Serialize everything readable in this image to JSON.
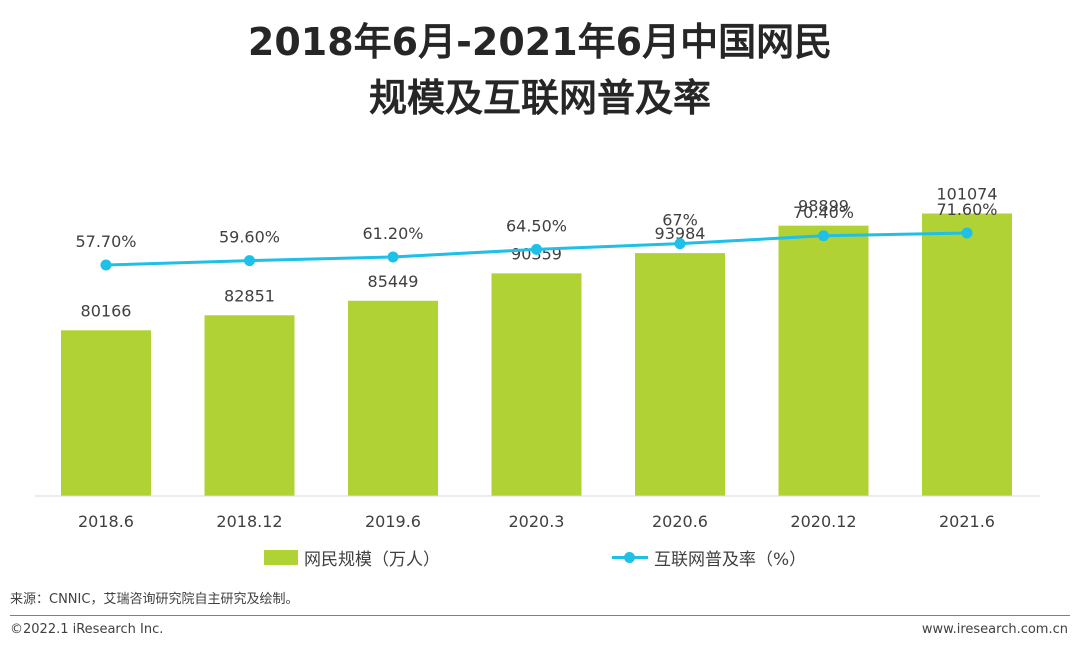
{
  "title_line1": "2018年6月-2021年6月中国网民",
  "title_line2": "规模及互联网普及率",
  "chart_data": {
    "type": "bar",
    "categories": [
      "2018.6",
      "2018.12",
      "2019.6",
      "2020.3",
      "2020.6",
      "2020.12",
      "2021.6"
    ],
    "series": [
      {
        "name": "网民规模（万人）",
        "type": "bar",
        "values": [
          80166,
          82851,
          85449,
          90359,
          93984,
          98899,
          101074
        ],
        "labels": [
          "80166",
          "82851",
          "85449",
          "90359",
          "93984",
          "98899",
          "101074"
        ],
        "color": "#b1d234"
      },
      {
        "name": "互联网普及率（%）",
        "type": "line",
        "values": [
          57.7,
          59.6,
          61.2,
          64.5,
          67,
          70.4,
          71.6
        ],
        "labels": [
          "57.70%",
          "59.60%",
          "61.20%",
          "64.50%",
          "67%",
          "70.40%",
          "71.60%"
        ],
        "color": "#1ec0e8"
      }
    ],
    "grid": false,
    "legend": "bottom"
  },
  "source": "来源：CNNIC，艾瑞咨询研究院自主研究及绘制。",
  "footer": {
    "copyright": "©2022.1 iResearch Inc.",
    "website": "www.iresearch.com.cn"
  }
}
